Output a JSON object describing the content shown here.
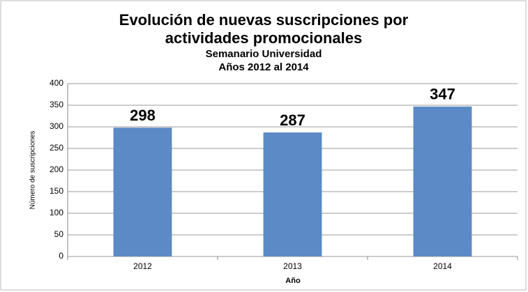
{
  "chart_data": {
    "type": "bar",
    "title": [
      "Evolución de  nuevas suscripciones por",
      "actividades promocionales"
    ],
    "subtitle": [
      "Semanario Universidad",
      "Años 2012 al 2014"
    ],
    "categories": [
      "2012",
      "2013",
      "2014"
    ],
    "values": [
      298,
      287,
      347
    ],
    "color": "#5b8ac6",
    "ylim": [
      0,
      400
    ],
    "yticks": [
      0,
      50,
      100,
      150,
      200,
      250,
      300,
      350,
      400
    ],
    "grid": true,
    "x_label": "Año",
    "y_label": "Número de suscripciones"
  }
}
